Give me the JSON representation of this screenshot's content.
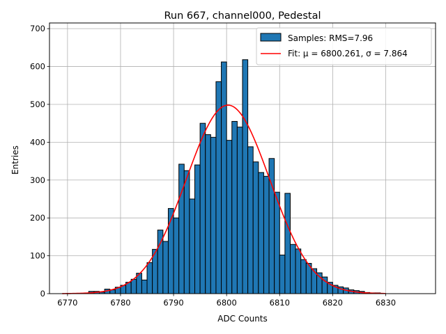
{
  "chart_data": {
    "type": "histogram",
    "title": "Run 667, channel000, Pedestal",
    "xlabel": "ADC Counts",
    "ylabel": "Entries",
    "xlim": [
      6766.6,
      6839.4
    ],
    "ylim": [
      0,
      715
    ],
    "xticks": [
      6770,
      6780,
      6790,
      6800,
      6810,
      6820,
      6830
    ],
    "yticks": [
      0,
      100,
      200,
      300,
      400,
      500,
      600,
      700
    ],
    "grid": true,
    "legend_position": "top-right",
    "bins": [
      {
        "x": 6774,
        "count": 6
      },
      {
        "x": 6775,
        "count": 6
      },
      {
        "x": 6776,
        "count": 4
      },
      {
        "x": 6777,
        "count": 12
      },
      {
        "x": 6778,
        "count": 10
      },
      {
        "x": 6779,
        "count": 17
      },
      {
        "x": 6780,
        "count": 22
      },
      {
        "x": 6781,
        "count": 30
      },
      {
        "x": 6782,
        "count": 38
      },
      {
        "x": 6783,
        "count": 54
      },
      {
        "x": 6784,
        "count": 36
      },
      {
        "x": 6785,
        "count": 82
      },
      {
        "x": 6786,
        "count": 117
      },
      {
        "x": 6787,
        "count": 168
      },
      {
        "x": 6788,
        "count": 138
      },
      {
        "x": 6789,
        "count": 225
      },
      {
        "x": 6790,
        "count": 200
      },
      {
        "x": 6791,
        "count": 342
      },
      {
        "x": 6792,
        "count": 325
      },
      {
        "x": 6793,
        "count": 250
      },
      {
        "x": 6794,
        "count": 340
      },
      {
        "x": 6795,
        "count": 450
      },
      {
        "x": 6796,
        "count": 420
      },
      {
        "x": 6797,
        "count": 413
      },
      {
        "x": 6798,
        "count": 560
      },
      {
        "x": 6799,
        "count": 612
      },
      {
        "x": 6800,
        "count": 405
      },
      {
        "x": 6801,
        "count": 455
      },
      {
        "x": 6802,
        "count": 440
      },
      {
        "x": 6803,
        "count": 618
      },
      {
        "x": 6804,
        "count": 388
      },
      {
        "x": 6805,
        "count": 348
      },
      {
        "x": 6806,
        "count": 320
      },
      {
        "x": 6807,
        "count": 310
      },
      {
        "x": 6808,
        "count": 357
      },
      {
        "x": 6809,
        "count": 268
      },
      {
        "x": 6810,
        "count": 102
      },
      {
        "x": 6811,
        "count": 265
      },
      {
        "x": 6812,
        "count": 130
      },
      {
        "x": 6813,
        "count": 118
      },
      {
        "x": 6814,
        "count": 90
      },
      {
        "x": 6815,
        "count": 80
      },
      {
        "x": 6816,
        "count": 66
      },
      {
        "x": 6817,
        "count": 55
      },
      {
        "x": 6818,
        "count": 44
      },
      {
        "x": 6819,
        "count": 30
      },
      {
        "x": 6820,
        "count": 22
      },
      {
        "x": 6821,
        "count": 18
      },
      {
        "x": 6822,
        "count": 15
      },
      {
        "x": 6823,
        "count": 10
      },
      {
        "x": 6824,
        "count": 8
      },
      {
        "x": 6825,
        "count": 6
      },
      {
        "x": 6826,
        "count": 3
      },
      {
        "x": 6827,
        "count": 2
      },
      {
        "x": 6828,
        "count": 2
      }
    ],
    "bin_width": 1,
    "series": [
      {
        "name": "Samples: RMS=7.96",
        "kind": "bar",
        "color": "#1f77b4"
      },
      {
        "name": "Fit: μ = 6800.261, σ = 7.864",
        "kind": "line",
        "color": "#ff0000"
      }
    ],
    "fit": {
      "mu": 6800.261,
      "sigma": 7.864,
      "amplitude": 498,
      "x_range": [
        6769,
        6830
      ]
    }
  }
}
